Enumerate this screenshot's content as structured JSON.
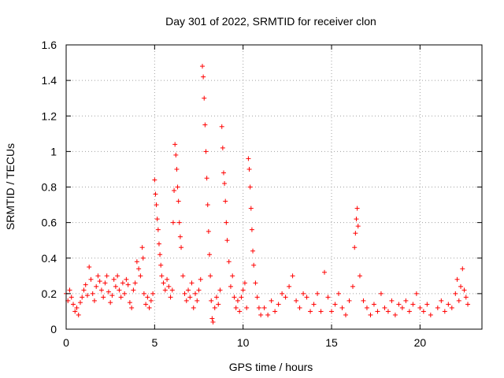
{
  "chart_data": {
    "type": "scatter",
    "title": "Day 301 of 2022, SRMTID for receiver clon",
    "xlabel": "GPS time / hours",
    "ylabel": "SRMTID / TECUs",
    "xlim": [
      0,
      23.5
    ],
    "ylim": [
      0,
      1.6
    ],
    "x_ticks": [
      0,
      5,
      10,
      15,
      20
    ],
    "x_tick_labels": [
      "0",
      "5",
      "10",
      "15",
      "20"
    ],
    "y_ticks": [
      0,
      0.2,
      0.4,
      0.6,
      0.8,
      1,
      1.2,
      1.4,
      1.6
    ],
    "y_tick_labels": [
      "0",
      "0.2",
      "0.4",
      "0.6",
      "0.8",
      "1",
      "1.2",
      "1.4",
      "1.6"
    ],
    "grid": true,
    "marker": "plus",
    "color": "#ff0000",
    "series": [
      {
        "name": "SRMTID",
        "points": [
          [
            0.0,
            0.2
          ],
          [
            0.1,
            0.16
          ],
          [
            0.2,
            0.22
          ],
          [
            0.3,
            0.18
          ],
          [
            0.4,
            0.14
          ],
          [
            0.5,
            0.1
          ],
          [
            0.6,
            0.12
          ],
          [
            0.7,
            0.08
          ],
          [
            0.8,
            0.15
          ],
          [
            0.9,
            0.18
          ],
          [
            1.0,
            0.22
          ],
          [
            1.1,
            0.25
          ],
          [
            1.2,
            0.19
          ],
          [
            1.3,
            0.35
          ],
          [
            1.4,
            0.28
          ],
          [
            1.5,
            0.2
          ],
          [
            1.6,
            0.16
          ],
          [
            1.7,
            0.24
          ],
          [
            1.8,
            0.3
          ],
          [
            1.9,
            0.27
          ],
          [
            2.0,
            0.22
          ],
          [
            2.1,
            0.18
          ],
          [
            2.2,
            0.26
          ],
          [
            2.3,
            0.3
          ],
          [
            2.4,
            0.21
          ],
          [
            2.5,
            0.15
          ],
          [
            2.6,
            0.19
          ],
          [
            2.7,
            0.28
          ],
          [
            2.8,
            0.24
          ],
          [
            2.9,
            0.3
          ],
          [
            3.0,
            0.22
          ],
          [
            3.1,
            0.18
          ],
          [
            3.2,
            0.26
          ],
          [
            3.3,
            0.2
          ],
          [
            3.4,
            0.28
          ],
          [
            3.5,
            0.25
          ],
          [
            3.6,
            0.15
          ],
          [
            3.7,
            0.12
          ],
          [
            3.8,
            0.22
          ],
          [
            3.9,
            0.26
          ],
          [
            4.0,
            0.38
          ],
          [
            4.1,
            0.34
          ],
          [
            4.2,
            0.3
          ],
          [
            4.3,
            0.46
          ],
          [
            4.35,
            0.4
          ],
          [
            4.4,
            0.2
          ],
          [
            4.5,
            0.14
          ],
          [
            4.6,
            0.18
          ],
          [
            4.7,
            0.12
          ],
          [
            4.8,
            0.16
          ],
          [
            4.9,
            0.2
          ],
          [
            5.0,
            0.84
          ],
          [
            5.05,
            0.76
          ],
          [
            5.1,
            0.7
          ],
          [
            5.15,
            0.62
          ],
          [
            5.2,
            0.56
          ],
          [
            5.25,
            0.48
          ],
          [
            5.3,
            0.42
          ],
          [
            5.35,
            0.36
          ],
          [
            5.4,
            0.3
          ],
          [
            5.5,
            0.26
          ],
          [
            5.6,
            0.22
          ],
          [
            5.7,
            0.28
          ],
          [
            5.8,
            0.24
          ],
          [
            5.9,
            0.18
          ],
          [
            6.0,
            0.22
          ],
          [
            6.05,
            0.6
          ],
          [
            6.1,
            0.78
          ],
          [
            6.15,
            1.04
          ],
          [
            6.2,
            0.98
          ],
          [
            6.25,
            0.9
          ],
          [
            6.3,
            0.8
          ],
          [
            6.35,
            0.72
          ],
          [
            6.4,
            0.6
          ],
          [
            6.45,
            0.52
          ],
          [
            6.5,
            0.46
          ],
          [
            6.6,
            0.3
          ],
          [
            6.7,
            0.2
          ],
          [
            6.8,
            0.16
          ],
          [
            6.9,
            0.22
          ],
          [
            7.0,
            0.18
          ],
          [
            7.1,
            0.26
          ],
          [
            7.2,
            0.12
          ],
          [
            7.3,
            0.2
          ],
          [
            7.4,
            0.16
          ],
          [
            7.5,
            0.22
          ],
          [
            7.6,
            0.28
          ],
          [
            7.7,
            1.48
          ],
          [
            7.75,
            1.42
          ],
          [
            7.8,
            1.3
          ],
          [
            7.85,
            1.15
          ],
          [
            7.9,
            1.0
          ],
          [
            7.95,
            0.85
          ],
          [
            8.0,
            0.7
          ],
          [
            8.05,
            0.55
          ],
          [
            8.1,
            0.42
          ],
          [
            8.15,
            0.3
          ],
          [
            8.2,
            0.16
          ],
          [
            8.25,
            0.06
          ],
          [
            8.3,
            0.04
          ],
          [
            8.4,
            0.12
          ],
          [
            8.5,
            0.18
          ],
          [
            8.6,
            0.14
          ],
          [
            8.7,
            0.22
          ],
          [
            8.8,
            1.14
          ],
          [
            8.85,
            1.02
          ],
          [
            8.9,
            0.88
          ],
          [
            8.95,
            0.82
          ],
          [
            9.0,
            0.72
          ],
          [
            9.05,
            0.6
          ],
          [
            9.1,
            0.5
          ],
          [
            9.2,
            0.38
          ],
          [
            9.3,
            0.24
          ],
          [
            9.4,
            0.3
          ],
          [
            9.5,
            0.18
          ],
          [
            9.6,
            0.12
          ],
          [
            9.7,
            0.16
          ],
          [
            9.8,
            0.1
          ],
          [
            9.9,
            0.18
          ],
          [
            10.0,
            0.22
          ],
          [
            10.1,
            0.26
          ],
          [
            10.2,
            0.12
          ],
          [
            10.3,
            0.96
          ],
          [
            10.35,
            0.9
          ],
          [
            10.4,
            0.8
          ],
          [
            10.45,
            0.68
          ],
          [
            10.5,
            0.56
          ],
          [
            10.55,
            0.44
          ],
          [
            10.6,
            0.36
          ],
          [
            10.7,
            0.26
          ],
          [
            10.8,
            0.18
          ],
          [
            10.9,
            0.12
          ],
          [
            11.0,
            0.08
          ],
          [
            11.2,
            0.12
          ],
          [
            11.4,
            0.08
          ],
          [
            11.6,
            0.16
          ],
          [
            11.8,
            0.1
          ],
          [
            12.0,
            0.14
          ],
          [
            12.2,
            0.2
          ],
          [
            12.4,
            0.18
          ],
          [
            12.6,
            0.24
          ],
          [
            12.8,
            0.3
          ],
          [
            13.0,
            0.16
          ],
          [
            13.2,
            0.12
          ],
          [
            13.4,
            0.2
          ],
          [
            13.6,
            0.18
          ],
          [
            13.8,
            0.1
          ],
          [
            14.0,
            0.14
          ],
          [
            14.2,
            0.2
          ],
          [
            14.4,
            0.1
          ],
          [
            14.6,
            0.32
          ],
          [
            14.8,
            0.18
          ],
          [
            15.0,
            0.1
          ],
          [
            15.2,
            0.14
          ],
          [
            15.4,
            0.2
          ],
          [
            15.6,
            0.12
          ],
          [
            15.8,
            0.08
          ],
          [
            16.0,
            0.16
          ],
          [
            16.2,
            0.24
          ],
          [
            16.3,
            0.46
          ],
          [
            16.35,
            0.54
          ],
          [
            16.4,
            0.62
          ],
          [
            16.45,
            0.68
          ],
          [
            16.5,
            0.58
          ],
          [
            16.6,
            0.3
          ],
          [
            16.8,
            0.16
          ],
          [
            17.0,
            0.12
          ],
          [
            17.2,
            0.08
          ],
          [
            17.4,
            0.14
          ],
          [
            17.6,
            0.1
          ],
          [
            17.8,
            0.2
          ],
          [
            18.0,
            0.12
          ],
          [
            18.2,
            0.1
          ],
          [
            18.4,
            0.16
          ],
          [
            18.6,
            0.08
          ],
          [
            18.8,
            0.14
          ],
          [
            19.0,
            0.12
          ],
          [
            19.2,
            0.16
          ],
          [
            19.4,
            0.1
          ],
          [
            19.6,
            0.14
          ],
          [
            19.8,
            0.2
          ],
          [
            20.0,
            0.12
          ],
          [
            20.2,
            0.1
          ],
          [
            20.4,
            0.14
          ],
          [
            20.6,
            0.08
          ],
          [
            21.0,
            0.12
          ],
          [
            21.2,
            0.16
          ],
          [
            21.4,
            0.1
          ],
          [
            21.6,
            0.14
          ],
          [
            21.8,
            0.12
          ],
          [
            22.0,
            0.2
          ],
          [
            22.1,
            0.28
          ],
          [
            22.2,
            0.16
          ],
          [
            22.3,
            0.24
          ],
          [
            22.4,
            0.34
          ],
          [
            22.5,
            0.22
          ],
          [
            22.6,
            0.18
          ],
          [
            22.7,
            0.14
          ]
        ]
      }
    ]
  }
}
